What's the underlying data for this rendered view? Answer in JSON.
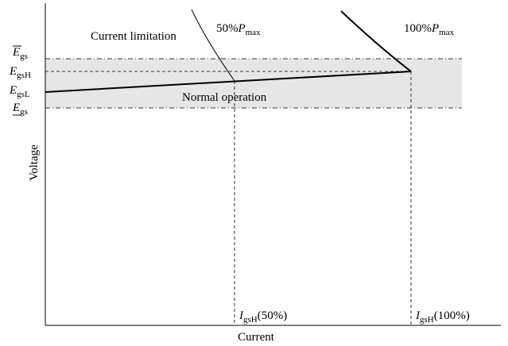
{
  "axes": {
    "x_label": "Current",
    "y_label": "Voltage"
  },
  "y_levels": {
    "egs_upper": {
      "main": "E",
      "sub": "gs"
    },
    "egsH": {
      "main": "E",
      "sub": "gsH"
    },
    "egsL": {
      "main": "E",
      "sub": "gsL"
    },
    "egs_lower": {
      "main": "E",
      "sub": "gs"
    }
  },
  "x_levels": {
    "igsH50": {
      "main": "I",
      "sub": "gsH",
      "suffix": "(50%)"
    },
    "igsH100": {
      "main": "I",
      "sub": "gsH",
      "suffix": "(100%)"
    }
  },
  "regions": {
    "normal_operation": "Normal operation",
    "current_limitation": "Current limitation"
  },
  "curves": {
    "p50": {
      "prefix": "50%",
      "main": "P",
      "sub": "max"
    },
    "p100": {
      "prefix": "100%",
      "main": "P",
      "sub": "max"
    }
  },
  "colors": {
    "band": "#e6e6e6",
    "line": "#000000"
  }
}
